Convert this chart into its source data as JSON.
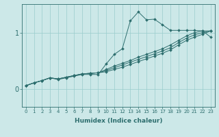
{
  "xlabel": "Humidex (Indice chaleur)",
  "bg_color": "#cce8e8",
  "grid_color": "#99cccc",
  "line_color": "#2d6e6e",
  "xlim": [
    -0.5,
    23.5
  ],
  "ylim": [
    -0.32,
    1.52
  ],
  "yticks": [
    0,
    1
  ],
  "ytick_labels": [
    "0",
    "1"
  ],
  "xtick_labels": [
    "0",
    "1",
    "2",
    "3",
    "4",
    "5",
    "6",
    "7",
    "8",
    "9",
    "10",
    "11",
    "12",
    "13",
    "14",
    "15",
    "16",
    "17",
    "18",
    "19",
    "20",
    "21",
    "22",
    "23"
  ],
  "lines": [
    [
      0.06,
      0.11,
      0.15,
      0.2,
      0.17,
      0.2,
      0.23,
      0.26,
      0.26,
      0.26,
      0.45,
      0.62,
      0.72,
      1.22,
      1.38,
      1.24,
      1.25,
      1.15,
      1.05,
      1.05,
      1.05,
      1.05,
      1.04,
      0.93
    ],
    [
      0.06,
      0.11,
      0.15,
      0.2,
      0.18,
      0.21,
      0.24,
      0.27,
      0.28,
      0.29,
      0.35,
      0.41,
      0.46,
      0.51,
      0.57,
      0.62,
      0.67,
      0.72,
      0.79,
      0.87,
      0.95,
      1.01,
      1.04,
      1.04
    ],
    [
      0.06,
      0.11,
      0.15,
      0.2,
      0.18,
      0.21,
      0.24,
      0.27,
      0.28,
      0.29,
      0.33,
      0.38,
      0.43,
      0.48,
      0.53,
      0.58,
      0.63,
      0.68,
      0.74,
      0.83,
      0.91,
      0.97,
      1.01,
      1.04
    ],
    [
      0.06,
      0.11,
      0.15,
      0.2,
      0.18,
      0.21,
      0.24,
      0.27,
      0.28,
      0.29,
      0.31,
      0.35,
      0.39,
      0.44,
      0.49,
      0.54,
      0.59,
      0.64,
      0.7,
      0.79,
      0.87,
      0.93,
      0.98,
      1.04
    ]
  ]
}
